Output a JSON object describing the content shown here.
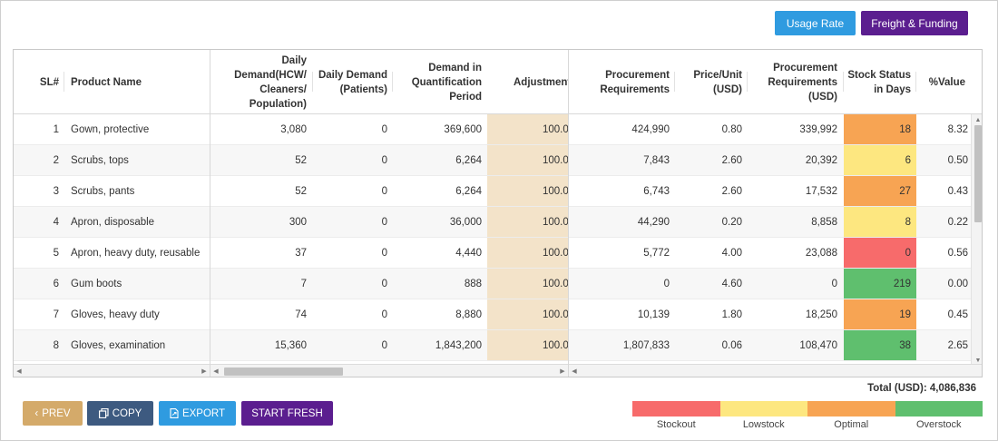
{
  "top_buttons": {
    "usage_rate": "Usage Rate",
    "freight_funding": "Freight & Funding"
  },
  "columns": {
    "sl": "SL#",
    "product": "Product Name",
    "daily_hcw": [
      "Daily",
      "Demand(HCW/",
      "Cleaners/",
      "Population)"
    ],
    "daily_patients": [
      "Daily Demand",
      "(Patients)"
    ],
    "demand_period": [
      "Demand in",
      "Quantification",
      "Period"
    ],
    "adjustment": "Adjustment",
    "procurement_req": [
      "Procurement",
      "Requirements"
    ],
    "price_unit": [
      "Price/Unit",
      "(USD)"
    ],
    "procurement_usd": [
      "Procurement",
      "Requirements",
      "(USD)"
    ],
    "stock_status": [
      "Stock Status",
      "in Days"
    ],
    "pct_value": "%Value"
  },
  "rows": [
    {
      "sl": "1",
      "product": "Gown, protective",
      "daily_hcw": "3,080",
      "daily_patients": "0",
      "demand_period": "369,600",
      "adjustment": "100.0",
      "procurement_req": "424,990",
      "price": "0.80",
      "procurement_usd": "339,992",
      "stock_days": "18",
      "stock_status": "optimal",
      "pct": "8.32"
    },
    {
      "sl": "2",
      "product": "Scrubs, tops",
      "daily_hcw": "52",
      "daily_patients": "0",
      "demand_period": "6,264",
      "adjustment": "100.0",
      "procurement_req": "7,843",
      "price": "2.60",
      "procurement_usd": "20,392",
      "stock_days": "6",
      "stock_status": "lowstock",
      "pct": "0.50"
    },
    {
      "sl": "3",
      "product": "Scrubs, pants",
      "daily_hcw": "52",
      "daily_patients": "0",
      "demand_period": "6,264",
      "adjustment": "100.0",
      "procurement_req": "6,743",
      "price": "2.60",
      "procurement_usd": "17,532",
      "stock_days": "27",
      "stock_status": "optimal",
      "pct": "0.43"
    },
    {
      "sl": "4",
      "product": "Apron, disposable",
      "daily_hcw": "300",
      "daily_patients": "0",
      "demand_period": "36,000",
      "adjustment": "100.0",
      "procurement_req": "44,290",
      "price": "0.20",
      "procurement_usd": "8,858",
      "stock_days": "8",
      "stock_status": "lowstock",
      "pct": "0.22"
    },
    {
      "sl": "5",
      "product": "Apron, heavy duty, reusable",
      "daily_hcw": "37",
      "daily_patients": "0",
      "demand_period": "4,440",
      "adjustment": "100.0",
      "procurement_req": "5,772",
      "price": "4.00",
      "procurement_usd": "23,088",
      "stock_days": "0",
      "stock_status": "stockout",
      "pct": "0.56"
    },
    {
      "sl": "6",
      "product": "Gum boots",
      "daily_hcw": "7",
      "daily_patients": "0",
      "demand_period": "888",
      "adjustment": "100.0",
      "procurement_req": "0",
      "price": "4.60",
      "procurement_usd": "0",
      "stock_days": "219",
      "stock_status": "overstock",
      "pct": "0.00"
    },
    {
      "sl": "7",
      "product": "Gloves, heavy duty",
      "daily_hcw": "74",
      "daily_patients": "0",
      "demand_period": "8,880",
      "adjustment": "100.0",
      "procurement_req": "10,139",
      "price": "1.80",
      "procurement_usd": "18,250",
      "stock_days": "19",
      "stock_status": "optimal",
      "pct": "0.45"
    },
    {
      "sl": "8",
      "product": "Gloves, examination",
      "daily_hcw": "15,360",
      "daily_patients": "0",
      "demand_period": "1,843,200",
      "adjustment": "100.0",
      "procurement_req": "1,807,833",
      "price": "0.06",
      "procurement_usd": "108,470",
      "stock_days": "38",
      "stock_status": "overstock",
      "pct": "2.65"
    }
  ],
  "total": "Total (USD): 4,086,836",
  "bottom_buttons": {
    "prev": "PREV",
    "copy": "COPY",
    "export": "EXPORT",
    "start_fresh": "START FRESH"
  },
  "legend": [
    {
      "label": "Stockout",
      "color": "#f76b6b"
    },
    {
      "label": "Lowstock",
      "color": "#fde780"
    },
    {
      "label": "Optimal",
      "color": "#f7a453"
    },
    {
      "label": "Overstock",
      "color": "#5fbf6e"
    }
  ],
  "status_colors": {
    "stockout": "#f76b6b",
    "lowstock": "#fde780",
    "optimal": "#f7a453",
    "overstock": "#5fbf6e"
  }
}
